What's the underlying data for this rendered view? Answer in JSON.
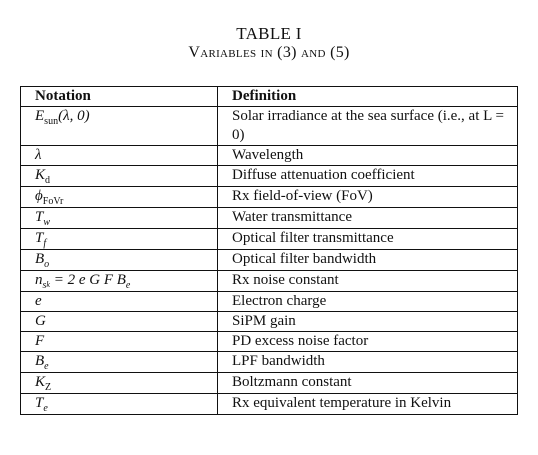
{
  "caption": {
    "number": "TABLE I",
    "title": "Variables in (3) and (5)"
  },
  "table": {
    "headers": {
      "notation": "Notation",
      "definition": "Definition"
    },
    "rows": [
      {
        "notation": {
          "base": "E",
          "sub": "sun",
          "rest": "(λ, 0)"
        },
        "definition": "Solar irradiance at the sea surface (i.e., at L = 0)"
      },
      {
        "notation": {
          "base": "λ"
        },
        "definition": "Wavelength"
      },
      {
        "notation": {
          "base": "K",
          "sub": "d"
        },
        "definition": "Diffuse attenuation coefficient"
      },
      {
        "notation": {
          "base": "ϕ",
          "sub": "FoVr"
        },
        "definition": "Rx field-of-view (FoV)"
      },
      {
        "notation": {
          "base": "T",
          "sub": "w"
        },
        "definition": "Water transmittance"
      },
      {
        "notation": {
          "base": "T",
          "sub": "f"
        },
        "definition": "Optical filter transmittance"
      },
      {
        "notation": {
          "base": "B",
          "sub": "o"
        },
        "definition": "Optical filter bandwidth"
      },
      {
        "notation": {
          "base": "n",
          "sub": "s",
          "subsub": "k",
          "rest": " = 2 e G F B",
          "rest_sub": "e"
        },
        "definition": "Rx noise constant"
      },
      {
        "notation": {
          "base": "e"
        },
        "definition": "Electron charge"
      },
      {
        "notation": {
          "base": "G"
        },
        "definition": "SiPM gain"
      },
      {
        "notation": {
          "base": "F"
        },
        "definition": "PD excess noise factor"
      },
      {
        "notation": {
          "base": "B",
          "sub": "e"
        },
        "definition": "LPF bandwidth"
      },
      {
        "notation": {
          "base": "K",
          "sub": "Z"
        },
        "definition": "Boltzmann constant"
      },
      {
        "notation": {
          "base": "T",
          "sub": "e"
        },
        "definition": "Rx equivalent temperature in Kelvin"
      }
    ]
  }
}
